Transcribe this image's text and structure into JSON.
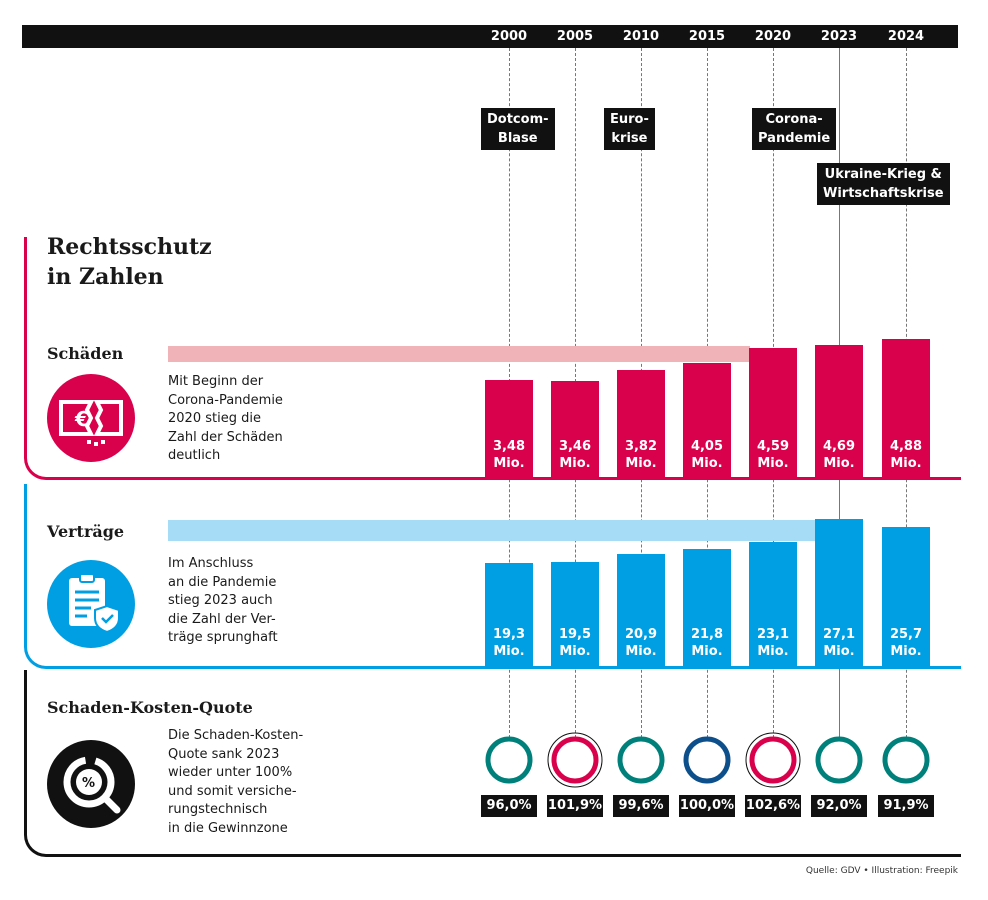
{
  "title": "Rechtsschutz\nin Zahlen",
  "source": "Quelle: GDV • Illustration: Freepik",
  "colors": {
    "schaeden": "#d9004c",
    "schaeden_band": "#f0b3b8",
    "vertraege": "#009fe3",
    "vertraege_band": "#a6dcf5",
    "quote_good": "#00807a",
    "quote_neutral": "#0d4f8b",
    "quote_bad": "#d9004c",
    "dark": "#111111"
  },
  "events": [
    {
      "label": "Dotcom-\nBlase",
      "year": "2000"
    },
    {
      "label": "Euro-\nkrise",
      "year": "2010"
    },
    {
      "label": "Corona-\nPandemie",
      "year": "2020"
    },
    {
      "label": "Ukraine-Krieg &\nWirtschaftskrise",
      "year": "2023"
    }
  ],
  "sections": {
    "schaeden": {
      "title": "Schäden",
      "text": "Mit Beginn der\nCorona-Pandemie\n2020 stieg die\nZahl der Schäden\ndeutlich",
      "icon": "euro-banknote-icon"
    },
    "vertraege": {
      "title": "Verträge",
      "text": "Im Anschluss\nan die Pandemie\nstieg 2023 auch\ndie Zahl der Ver-\nträge sprunghaft",
      "icon": "clipboard-shield-icon"
    },
    "quote": {
      "title": "Schaden-Kosten-Quote",
      "text": "Die Schaden-Kosten-\nQuote sank 2023\nwieder unter 100%\nund somit versiche-\nrungstechnisch\nin die Gewinnzone",
      "icon": "percent-magnifier-icon"
    }
  },
  "chart_data": {
    "type": "bar",
    "categories": [
      "2000",
      "2005",
      "2010",
      "2015",
      "2020",
      "2023",
      "2024"
    ],
    "series": [
      {
        "name": "Schäden",
        "unit": "Mio.",
        "values": [
          3.48,
          3.46,
          3.82,
          4.05,
          4.59,
          4.69,
          4.88
        ],
        "labels": [
          "3,48\nMio.",
          "3,46\nMio.",
          "3,82\nMio.",
          "4,05\nMio.",
          "4,59\nMio.",
          "4,69\nMio.",
          "4,88\nMio."
        ]
      },
      {
        "name": "Verträge",
        "unit": "Mio.",
        "values": [
          19.3,
          19.5,
          20.9,
          21.8,
          23.1,
          27.1,
          25.7
        ],
        "labels": [
          "19,3\nMio.",
          "19,5\nMio.",
          "20,9\nMio.",
          "21,8\nMio.",
          "23,1\nMio.",
          "27,1\nMio.",
          "25,7\nMio."
        ]
      },
      {
        "name": "Schaden-Kosten-Quote",
        "unit": "%",
        "values": [
          96.0,
          101.9,
          99.6,
          100.0,
          102.6,
          92.0,
          91.9
        ],
        "labels": [
          "96,0%",
          "101,9%",
          "99,6%",
          "100,0%",
          "102,6%",
          "92,0%",
          "91,9%"
        ]
      }
    ]
  }
}
